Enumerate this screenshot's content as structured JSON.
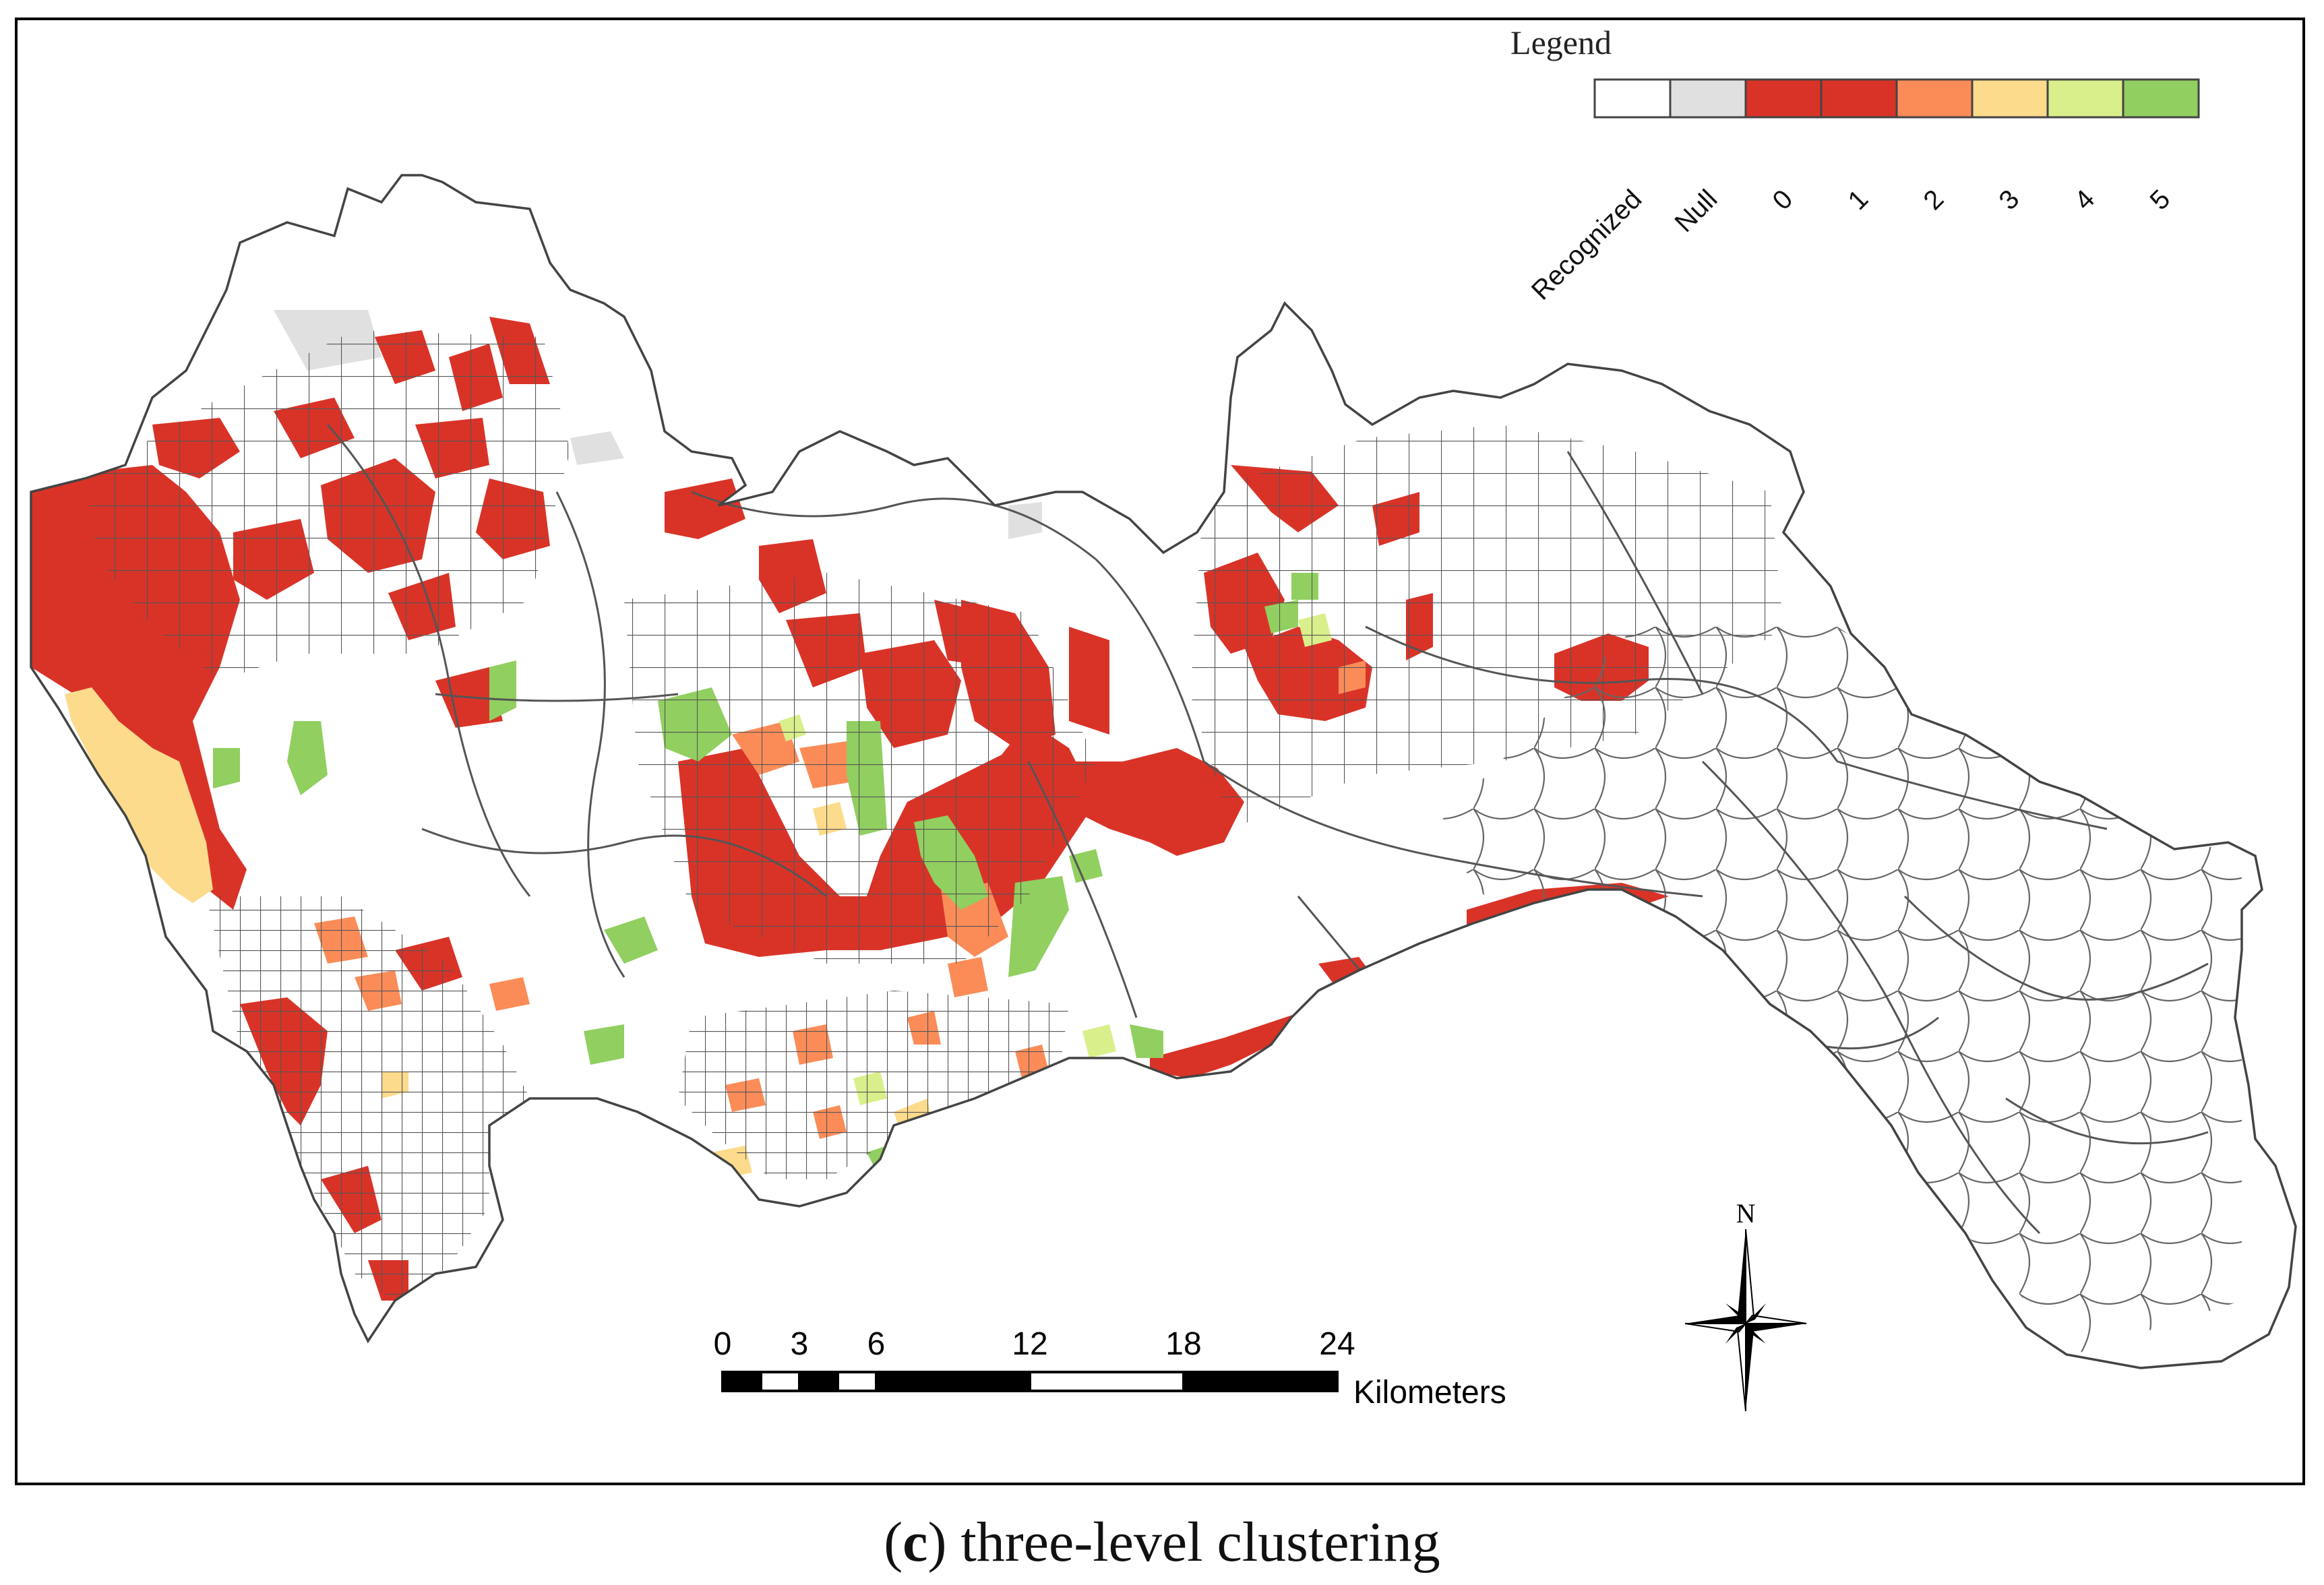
{
  "legend": {
    "title": "Legend",
    "classes": [
      {
        "label": "Recognized",
        "color": "#ffffff"
      },
      {
        "label": "Null",
        "color": "#e0e0e0"
      },
      {
        "label": "0",
        "color": "#d93328"
      },
      {
        "label": "1",
        "color": "#d93328"
      },
      {
        "label": "2",
        "color": "#fb8c58"
      },
      {
        "label": "3",
        "color": "#fcdb8c"
      },
      {
        "label": "4",
        "color": "#d9ef8b"
      },
      {
        "label": "5",
        "color": "#91cf60"
      }
    ]
  },
  "scale_bar": {
    "ticks": [
      "0",
      "3",
      "6",
      "12",
      "18",
      "24"
    ],
    "unit": "Kilometers"
  },
  "north_arrow": {
    "label": "N",
    "icon": "compass-rose-icon"
  },
  "caption": {
    "letter": "c",
    "open": "(",
    "close": ")",
    "text": " three-level clustering"
  },
  "colors": {
    "outline": "#555555",
    "frame": "#000000"
  }
}
